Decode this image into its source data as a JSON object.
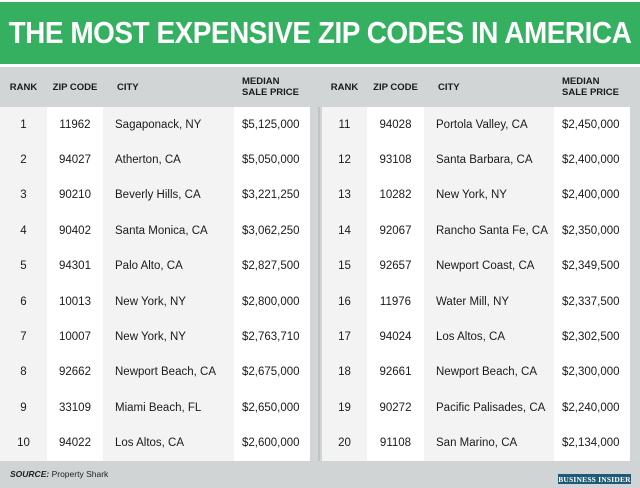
{
  "title": "THE MOST EXPENSIVE ZIP CODES IN AMERICA",
  "colors": {
    "banner": "#34b060",
    "header": "#d1d5d6",
    "logo": "#1d5a78"
  },
  "chart_data": {
    "type": "table",
    "title": "THE MOST EXPENSIVE ZIP CODES IN AMERICA",
    "columns": [
      "RANK",
      "ZIP CODE",
      "CITY",
      "MEDIAN SALE PRICE"
    ],
    "header": {
      "rank": "RANK",
      "zip": "ZIP CODE",
      "city": "CITY",
      "price1": "MEDIAN",
      "price2": "SALE PRICE"
    },
    "rows": [
      {
        "rank": "1",
        "zip": "11962",
        "city": "Sagaponack, NY",
        "price": "$5,125,000"
      },
      {
        "rank": "2",
        "zip": "94027",
        "city": "Atherton, CA",
        "price": "$5,050,000"
      },
      {
        "rank": "3",
        "zip": "90210",
        "city": "Beverly Hills, CA",
        "price": "$3,221,250"
      },
      {
        "rank": "4",
        "zip": "90402",
        "city": "Santa Monica, CA",
        "price": "$3,062,250"
      },
      {
        "rank": "5",
        "zip": "94301",
        "city": "Palo Alto, CA",
        "price": "$2,827,500"
      },
      {
        "rank": "6",
        "zip": "10013",
        "city": "New York, NY",
        "price": "$2,800,000"
      },
      {
        "rank": "7",
        "zip": "10007",
        "city": "New York, NY",
        "price": "$2,763,710"
      },
      {
        "rank": "8",
        "zip": "92662",
        "city": "Newport Beach, CA",
        "price": "$2,675,000"
      },
      {
        "rank": "9",
        "zip": "33109",
        "city": "Miami Beach, FL",
        "price": "$2,650,000"
      },
      {
        "rank": "10",
        "zip": "94022",
        "city": "Los Altos, CA",
        "price": "$2,600,000"
      },
      {
        "rank": "11",
        "zip": "94028",
        "city": "Portola Valley, CA",
        "price": "$2,450,000"
      },
      {
        "rank": "12",
        "zip": "93108",
        "city": "Santa Barbara, CA",
        "price": "$2,400,000"
      },
      {
        "rank": "13",
        "zip": "10282",
        "city": "New York, NY",
        "price": "$2,400,000"
      },
      {
        "rank": "14",
        "zip": "92067",
        "city": "Rancho Santa Fe, CA",
        "price": "$2,350,000"
      },
      {
        "rank": "15",
        "zip": "92657",
        "city": "Newport Coast, CA",
        "price": "$2,349,500"
      },
      {
        "rank": "16",
        "zip": "11976",
        "city": "Water Mill, NY",
        "price": "$2,337,500"
      },
      {
        "rank": "17",
        "zip": "94024",
        "city": "Los Altos, CA",
        "price": "$2,302,500"
      },
      {
        "rank": "18",
        "zip": "92661",
        "city": "Newport Beach, CA",
        "price": "$2,300,000"
      },
      {
        "rank": "19",
        "zip": "90272",
        "city": "Pacific Palisades, CA",
        "price": "$2,240,000"
      },
      {
        "rank": "20",
        "zip": "91108",
        "city": "San Marino, CA",
        "price": "$2,134,000"
      }
    ]
  },
  "footer": {
    "source_label": "SOURCE:",
    "source": "Property Shark",
    "logo": "BUSINESS INSIDER"
  }
}
